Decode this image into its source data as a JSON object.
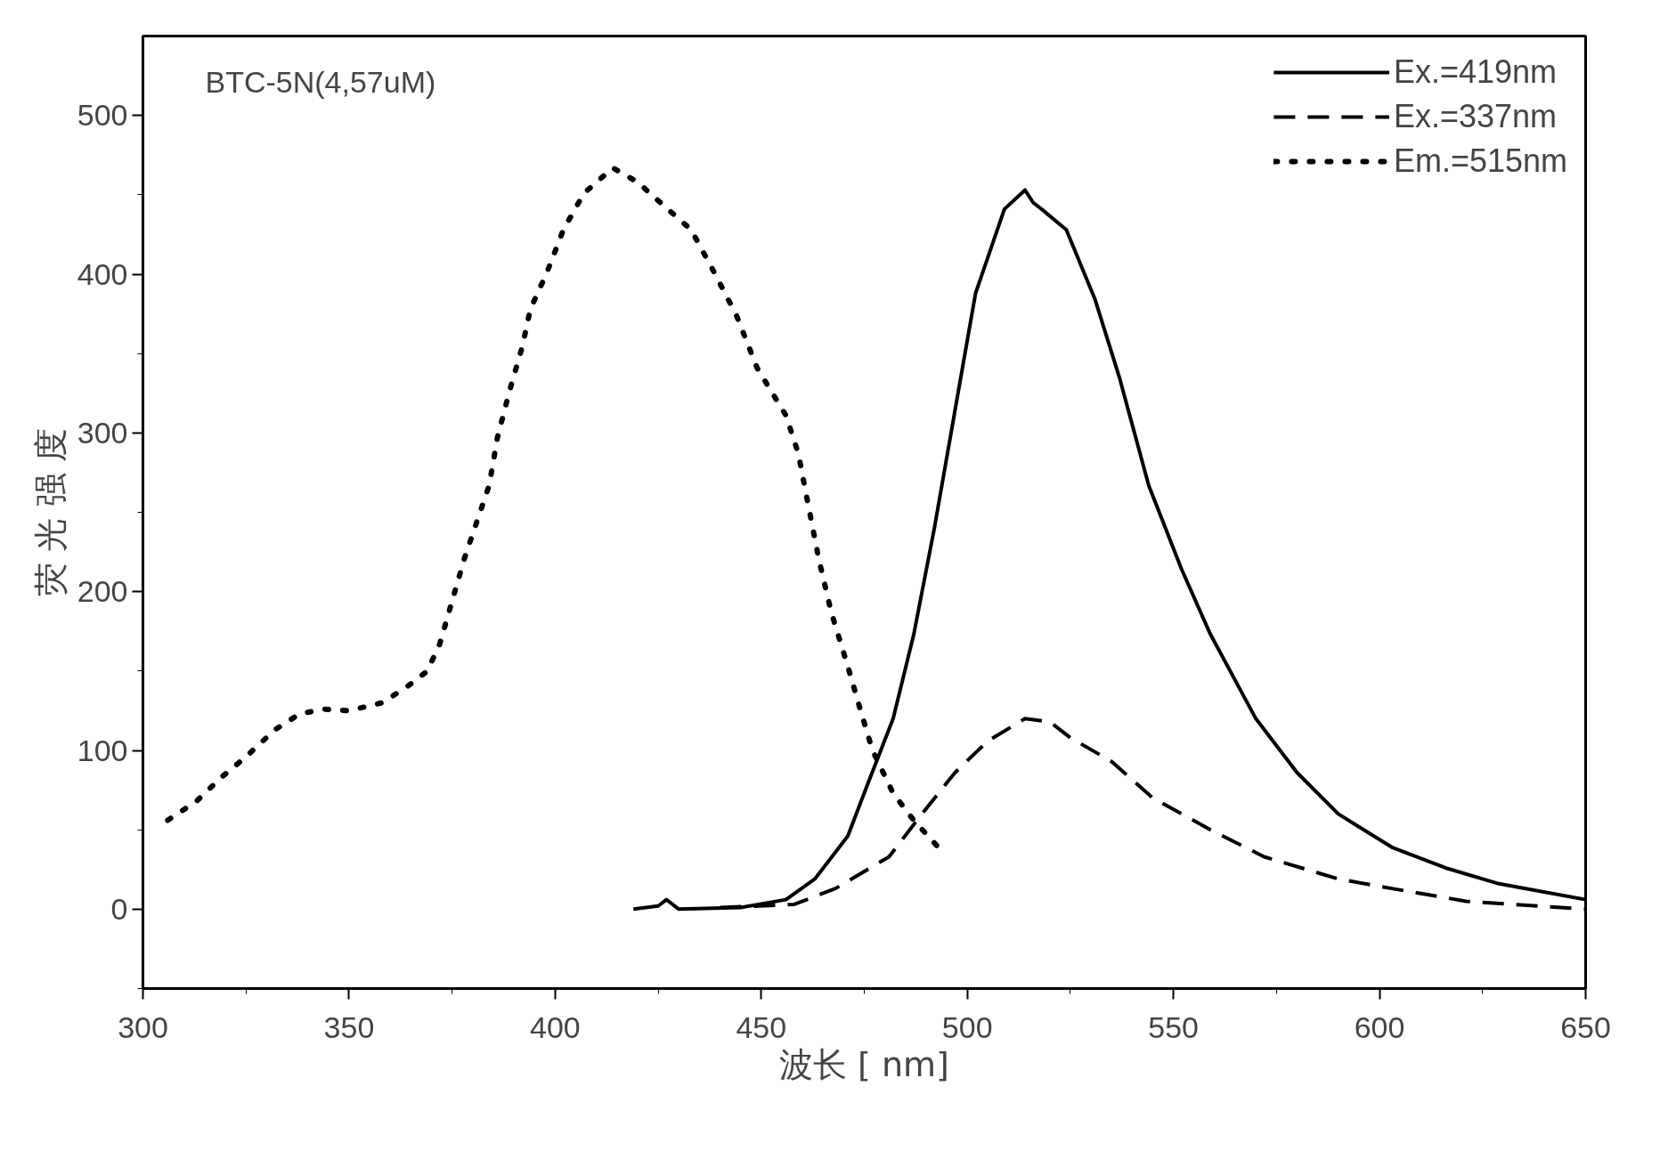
{
  "chart_data": {
    "type": "line",
    "xlabel": "波长 [ nm]",
    "ylabel": "荧 光 强 度",
    "annotations": [
      "BTC-5N(4,57uM)"
    ],
    "xlim": [
      300,
      650
    ],
    "xticks": [
      300,
      350,
      400,
      450,
      500,
      550,
      600,
      650
    ],
    "ylim": [
      -50,
      550
    ],
    "yticks": [
      0,
      100,
      200,
      300,
      400,
      500
    ],
    "legend": "top right",
    "grid": false,
    "marker": "none",
    "series": [
      {
        "name": "Ex.=419nm",
        "color": "#000000",
        "line_style": "solid",
        "x": [
          419,
          425,
          427,
          430,
          445,
          456,
          463,
          471,
          476,
          482,
          487,
          492,
          497,
          502,
          509,
          514,
          516,
          518,
          524,
          531,
          537,
          544,
          552,
          559,
          570,
          580,
          590,
          603,
          616,
          629,
          650
        ],
        "values": [
          0,
          2,
          6,
          0,
          1,
          6,
          19,
          46,
          80,
          120,
          173,
          240,
          314,
          388,
          441,
          453,
          445,
          441,
          428,
          384,
          334,
          267,
          214,
          173,
          120,
          86,
          60,
          39,
          26,
          16,
          6
        ]
      },
      {
        "name": "Ex.=337nm",
        "color": "#000000",
        "line_style": "dashed",
        "x": [
          440,
          458,
          468,
          481,
          489,
          497,
          505,
          514,
          520,
          525,
          535,
          545,
          559,
          572,
          590,
          603,
          621,
          650
        ],
        "values": [
          1,
          3,
          13,
          33,
          60,
          86,
          106,
          120,
          118,
          108,
          93,
          70,
          50,
          33,
          19,
          13,
          5,
          0
        ]
      },
      {
        "name": "Em.=515nm",
        "color": "#000000",
        "line_style": "dotted",
        "x": [
          306,
          313,
          319,
          325,
          332,
          338,
          344,
          350,
          358,
          364,
          369,
          372,
          375,
          378,
          381,
          384,
          386,
          389,
          392,
          394,
          398,
          402,
          407,
          414,
          420,
          426,
          433,
          438,
          444,
          449,
          456,
          459,
          461,
          464,
          467,
          471,
          474,
          477,
          482,
          487,
          494
        ],
        "values": [
          56,
          68,
          83,
          96,
          113,
          123,
          126,
          125,
          130,
          140,
          150,
          167,
          194,
          221,
          244,
          267,
          297,
          327,
          354,
          378,
          401,
          428,
          451,
          467,
          458,
          444,
          428,
          404,
          374,
          341,
          311,
          287,
          260,
          220,
          187,
          153,
          126,
          100,
          73,
          56,
          36
        ]
      }
    ]
  }
}
